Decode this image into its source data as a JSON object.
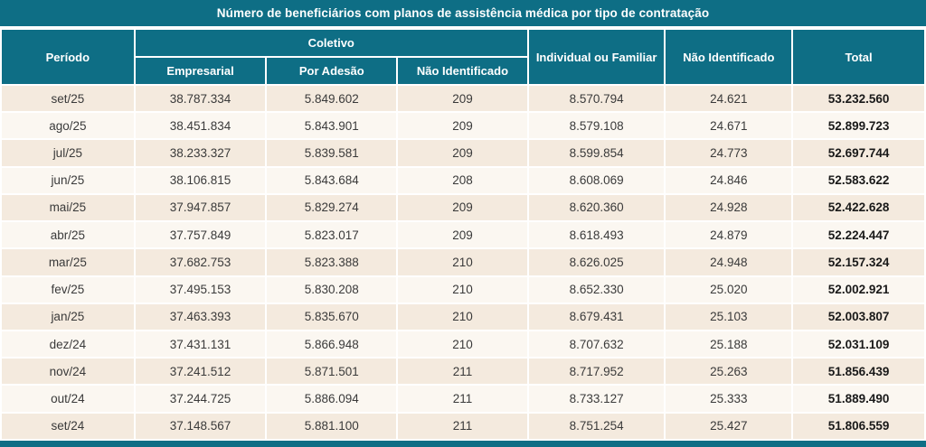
{
  "title": "Número de beneficiários com planos de assistência médica por tipo de contratação",
  "colors": {
    "teal": "#0e6e85",
    "row_odd": "#f4eade",
    "row_even": "#fbf7f1",
    "header_text": "#ffffff",
    "data_text": "#3a3a3a"
  },
  "header": {
    "periodo": "Período",
    "coletivo": "Coletivo",
    "empresarial": "Empresarial",
    "por_adesao": "Por Adesão",
    "nao_identificado_coletivo": "Não Identificado",
    "individual_familiar": "Individual ou Familiar",
    "nao_identificado": "Não Identificado",
    "total": "Total"
  },
  "chart_data": {
    "type": "table",
    "title": "Número de beneficiários com planos de assistência médica por tipo de contratação",
    "columns": [
      "Período",
      "Coletivo – Empresarial",
      "Coletivo – Por Adesão",
      "Coletivo – Não Identificado",
      "Individual ou Familiar",
      "Não Identificado",
      "Total"
    ],
    "rows": [
      [
        "set/25",
        "38.787.334",
        "5.849.602",
        "209",
        "8.570.794",
        "24.621",
        "53.232.560"
      ],
      [
        "ago/25",
        "38.451.834",
        "5.843.901",
        "209",
        "8.579.108",
        "24.671",
        "52.899.723"
      ],
      [
        "jul/25",
        "38.233.327",
        "5.839.581",
        "209",
        "8.599.854",
        "24.773",
        "52.697.744"
      ],
      [
        "jun/25",
        "38.106.815",
        "5.843.684",
        "208",
        "8.608.069",
        "24.846",
        "52.583.622"
      ],
      [
        "mai/25",
        "37.947.857",
        "5.829.274",
        "209",
        "8.620.360",
        "24.928",
        "52.422.628"
      ],
      [
        "abr/25",
        "37.757.849",
        "5.823.017",
        "209",
        "8.618.493",
        "24.879",
        "52.224.447"
      ],
      [
        "mar/25",
        "37.682.753",
        "5.823.388",
        "210",
        "8.626.025",
        "24.948",
        "52.157.324"
      ],
      [
        "fev/25",
        "37.495.153",
        "5.830.208",
        "210",
        "8.652.330",
        "25.020",
        "52.002.921"
      ],
      [
        "jan/25",
        "37.463.393",
        "5.835.670",
        "210",
        "8.679.431",
        "25.103",
        "52.003.807"
      ],
      [
        "dez/24",
        "37.431.131",
        "5.866.948",
        "210",
        "8.707.632",
        "25.188",
        "52.031.109"
      ],
      [
        "nov/24",
        "37.241.512",
        "5.871.501",
        "211",
        "8.717.952",
        "25.263",
        "51.856.439"
      ],
      [
        "out/24",
        "37.244.725",
        "5.886.094",
        "211",
        "8.733.127",
        "25.333",
        "51.889.490"
      ],
      [
        "set/24",
        "37.148.567",
        "5.881.100",
        "211",
        "8.751.254",
        "25.427",
        "51.806.559"
      ]
    ]
  }
}
